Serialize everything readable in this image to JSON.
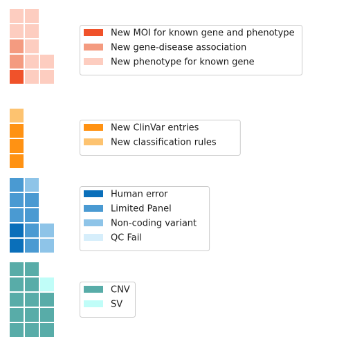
{
  "chart_data": [
    {
      "type": "waffle",
      "columns_filled_bottom_to_top": [
        [
          "New MOI for known gene and phenotype",
          "New gene-disease association",
          "New gene-disease association",
          "New phenotype for known gene",
          "New phenotype for known gene"
        ],
        [
          "New phenotype for known gene",
          "New phenotype for known gene",
          "New phenotype for known gene",
          "New phenotype for known gene",
          "New phenotype for known gene"
        ],
        [
          "New phenotype for known gene",
          "New phenotype for known gene"
        ]
      ],
      "legend": [
        {
          "label": "New MOI for known gene and phenotype",
          "color": "#f0522a"
        },
        {
          "label": "New gene-disease association",
          "color": "#f49b80"
        },
        {
          "label": "New phenotype for known gene",
          "color": "#fdcdc0"
        }
      ],
      "counts": {
        "New MOI for known gene and phenotype": 1,
        "New gene-disease association": 2,
        "New phenotype for known gene": 9
      }
    },
    {
      "type": "waffle",
      "columns_filled_bottom_to_top": [
        [
          "New ClinVar entries",
          "New ClinVar entries",
          "New ClinVar entries",
          "New classification rules"
        ]
      ],
      "legend": [
        {
          "label": "New ClinVar entries",
          "color": "#ff9213"
        },
        {
          "label": "New classification rules",
          "color": "#fdc370"
        }
      ],
      "counts": {
        "New ClinVar entries": 3,
        "New classification rules": 1
      }
    },
    {
      "type": "waffle",
      "columns_filled_bottom_to_top": [
        [
          "Human error",
          "Human error",
          "Limited Panel",
          "Limited Panel",
          "Limited Panel"
        ],
        [
          "Limited Panel",
          "Limited Panel",
          "Limited Panel",
          "Limited Panel",
          "Non-coding variant"
        ],
        [
          "Non-coding variant",
          "Non-coding variant"
        ]
      ],
      "legend": [
        {
          "label": "Human error",
          "color": "#0a6fba"
        },
        {
          "label": "Limited Panel",
          "color": "#4a9ad2"
        },
        {
          "label": "Non-coding variant",
          "color": "#8ec4e8"
        },
        {
          "label": "QC Fail",
          "color": "#d6eefb"
        }
      ],
      "counts": {
        "Human error": 2,
        "Limited Panel": 7,
        "Non-coding variant": 3,
        "QC Fail": 0
      }
    },
    {
      "type": "waffle",
      "columns_filled_bottom_to_top": [
        [
          "CNV",
          "CNV",
          "CNV",
          "CNV",
          "CNV"
        ],
        [
          "CNV",
          "CNV",
          "CNV",
          "CNV",
          "CNV"
        ],
        [
          "CNV",
          "CNV",
          "CNV",
          "SV"
        ]
      ],
      "legend": [
        {
          "label": "CNV",
          "color": "#58aca8"
        },
        {
          "label": "SV",
          "color": "#c0fdf8"
        }
      ],
      "counts": {
        "CNV": 13,
        "SV": 1
      }
    }
  ]
}
